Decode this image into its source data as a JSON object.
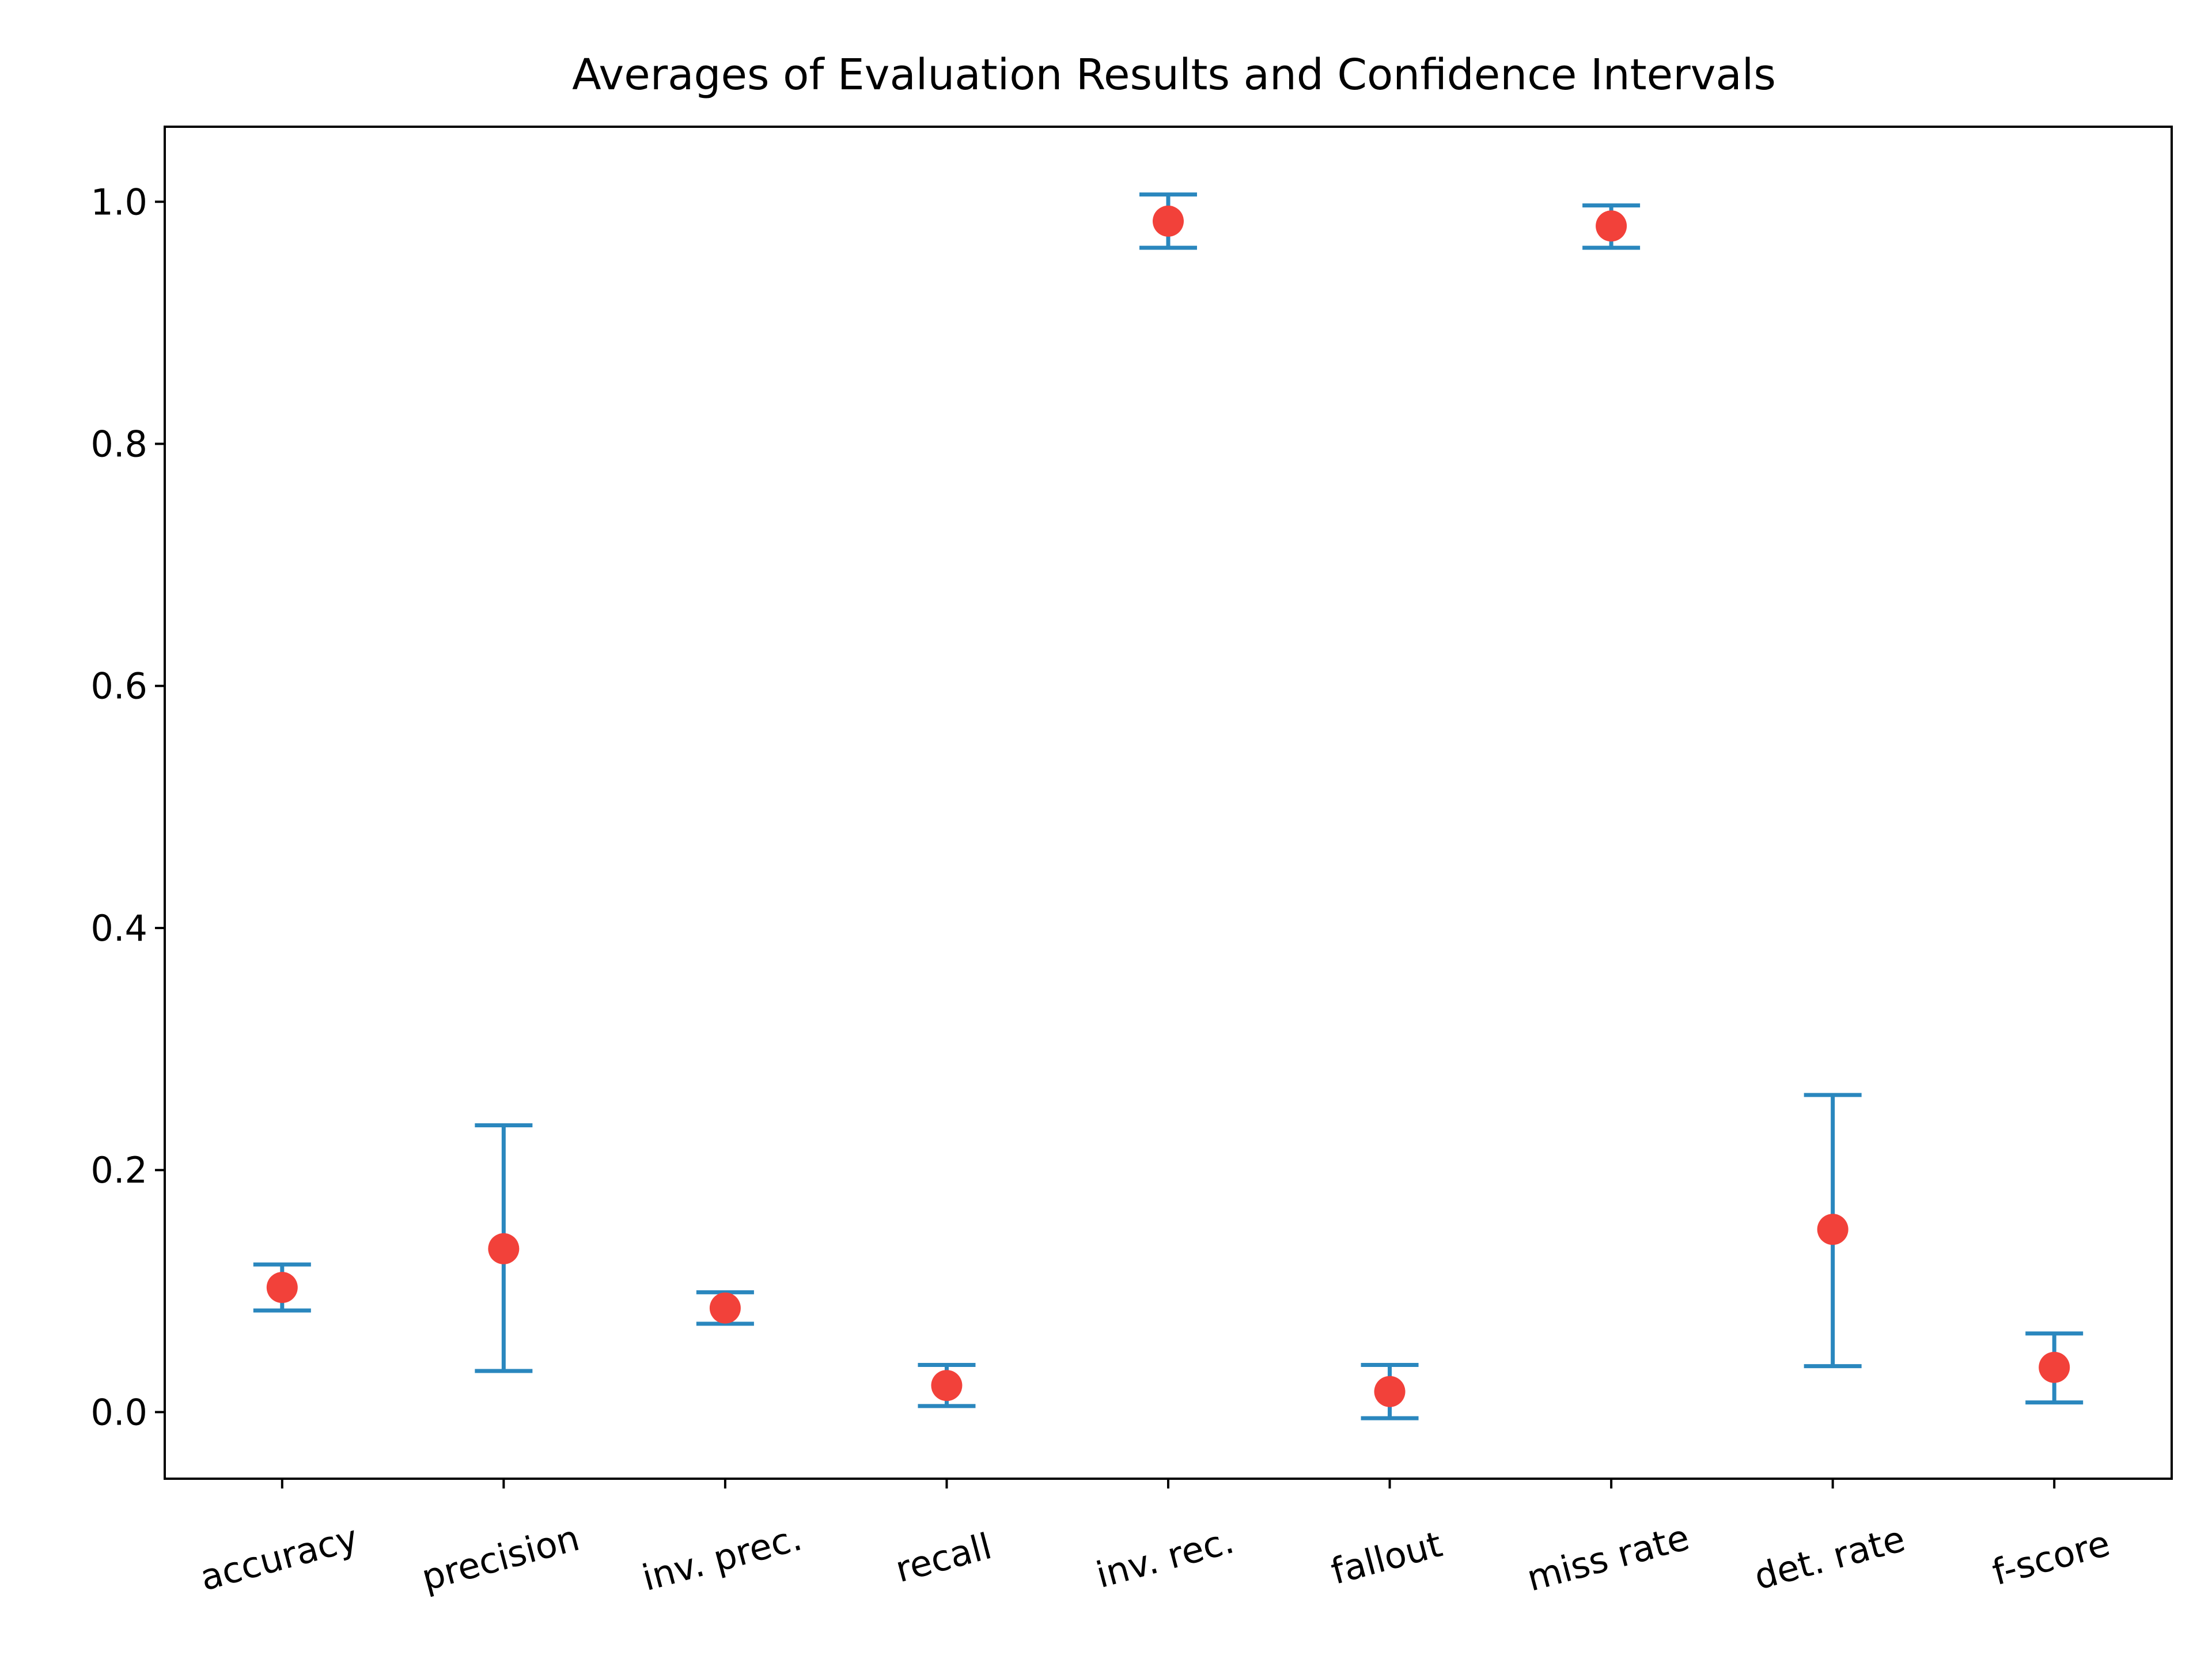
{
  "chart_data": {
    "type": "errorbar",
    "title": "Averages of Evaluation Results and Confidence Intervals",
    "xlabel": "",
    "ylabel": "",
    "categories": [
      "accuracy",
      "precision",
      "inv. prec.",
      "recall",
      "inv. rec.",
      "fallout",
      "miss rate",
      "det. rate",
      "f-score"
    ],
    "series": [
      {
        "mean": [
          0.103,
          0.135,
          0.086,
          0.022,
          0.984,
          0.017,
          0.98,
          0.151,
          0.037
        ],
        "ci_low": [
          0.084,
          0.034,
          0.073,
          0.005,
          0.962,
          -0.005,
          0.962,
          0.038,
          0.008
        ],
        "ci_high": [
          0.122,
          0.237,
          0.099,
          0.039,
          1.006,
          0.039,
          0.997,
          0.262,
          0.065
        ],
        "marker_color": "#f2413a",
        "errorbar_color": "#2a87be"
      }
    ],
    "ylim": [
      -0.055,
      1.062
    ],
    "yticks": [
      0.0,
      0.2,
      0.4,
      0.6,
      0.8,
      1.0
    ],
    "ytick_labels": [
      "0.0",
      "0.2",
      "0.4",
      "0.6",
      "0.8",
      "1.0"
    ],
    "grid": false,
    "legend": false
  }
}
